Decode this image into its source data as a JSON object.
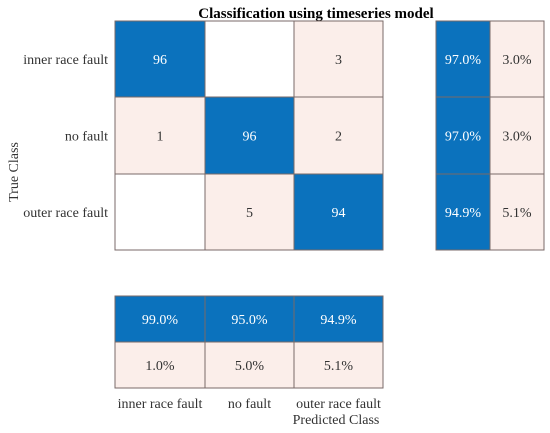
{
  "chart_data": {
    "type": "heatmap",
    "title": "Classification using timeseries model",
    "xlabel": "Predicted Class",
    "ylabel": "True Class",
    "classes": [
      "inner race fault",
      "no fault",
      "outer race fault"
    ],
    "matrix": [
      [
        "96",
        "",
        "3"
      ],
      [
        "1",
        "96",
        "2"
      ],
      [
        "",
        "5",
        "94"
      ]
    ],
    "row_summary": [
      [
        "97.0%",
        "3.0%"
      ],
      [
        "97.0%",
        "3.0%"
      ],
      [
        "94.9%",
        "5.1%"
      ]
    ],
    "column_summary": {
      "correct": [
        "99.0%",
        "95.0%",
        "94.9%"
      ],
      "incorrect": [
        "1.0%",
        "5.0%",
        "5.1%"
      ]
    },
    "colors": {
      "correct": "#0b72bd",
      "incorrect": "#fbeeea",
      "empty": "#ffffff",
      "border": "#7a6a68"
    }
  }
}
